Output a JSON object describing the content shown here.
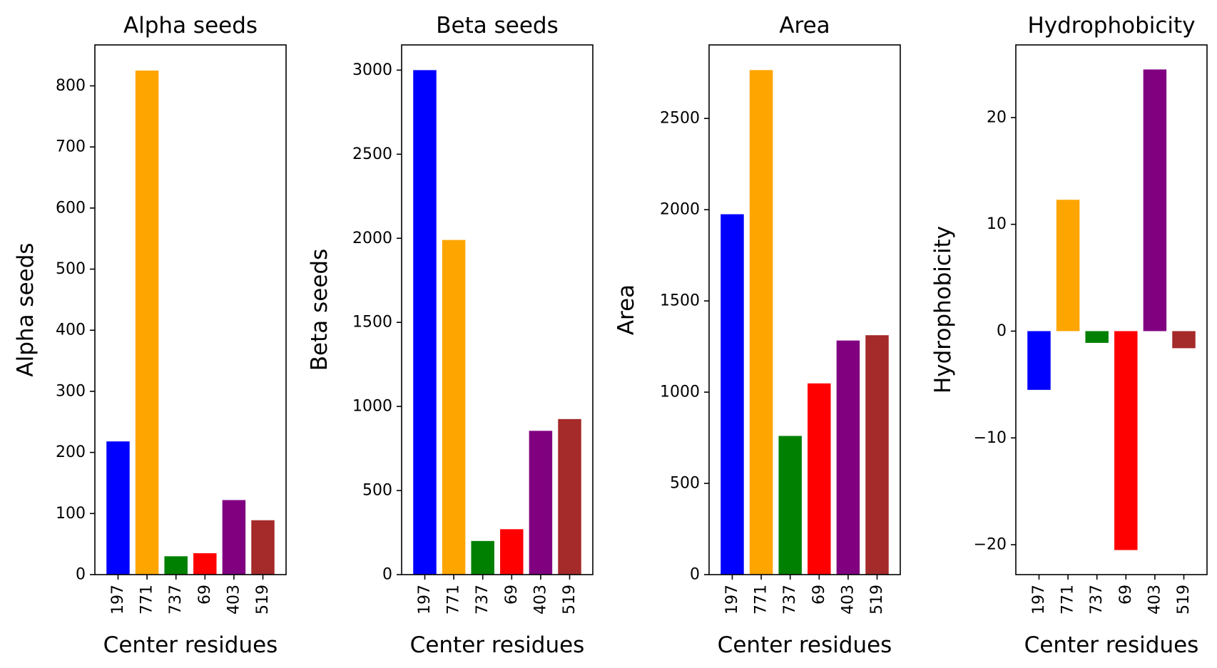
{
  "chart_data": [
    {
      "type": "bar",
      "title": "Alpha seeds",
      "xlabel": "Center residues",
      "ylabel": "Alpha seeds",
      "categories": [
        "197",
        "771",
        "737",
        "69",
        "403",
        "519"
      ],
      "values": [
        218,
        825,
        30,
        35,
        122,
        89
      ],
      "ylim": [
        0,
        867
      ],
      "yticks": [
        0,
        100,
        200,
        300,
        400,
        500,
        600,
        700,
        800
      ],
      "colors": [
        "#0000ff",
        "#ffa500",
        "#008000",
        "#ff0000",
        "#800080",
        "#a52a2a"
      ],
      "grid": false
    },
    {
      "type": "bar",
      "title": "Beta seeds",
      "xlabel": "Center residues",
      "ylabel": "Beta seeds",
      "categories": [
        "197",
        "771",
        "737",
        "69",
        "403",
        "519"
      ],
      "values": [
        3000,
        1990,
        200,
        270,
        855,
        925
      ],
      "ylim": [
        0,
        3150
      ],
      "yticks": [
        0,
        500,
        1000,
        1500,
        2000,
        2500,
        3000
      ],
      "colors": [
        "#0000ff",
        "#ffa500",
        "#008000",
        "#ff0000",
        "#800080",
        "#a52a2a"
      ],
      "grid": false
    },
    {
      "type": "bar",
      "title": "Area",
      "xlabel": "Center residues",
      "ylabel": "Area",
      "categories": [
        "197",
        "771",
        "737",
        "69",
        "403",
        "519"
      ],
      "values": [
        1975,
        2765,
        760,
        1048,
        1283,
        1312
      ],
      "ylim": [
        0,
        2903
      ],
      "yticks": [
        0,
        500,
        1000,
        1500,
        2000,
        2500
      ],
      "colors": [
        "#0000ff",
        "#ffa500",
        "#008000",
        "#ff0000",
        "#800080",
        "#a52a2a"
      ],
      "grid": false
    },
    {
      "type": "bar",
      "title": "Hydrophobicity",
      "xlabel": "Center residues",
      "ylabel": "Hydrophobicity",
      "categories": [
        "197",
        "771",
        "737",
        "69",
        "403",
        "519"
      ],
      "values": [
        -5.5,
        12.3,
        -1.1,
        -20.5,
        24.5,
        -1.6
      ],
      "ylim": [
        -22.8,
        26.8
      ],
      "yticks": [
        -20,
        -10,
        0,
        10,
        20
      ],
      "colors": [
        "#0000ff",
        "#ffa500",
        "#008000",
        "#ff0000",
        "#800080",
        "#a52a2a"
      ],
      "grid": false
    }
  ]
}
